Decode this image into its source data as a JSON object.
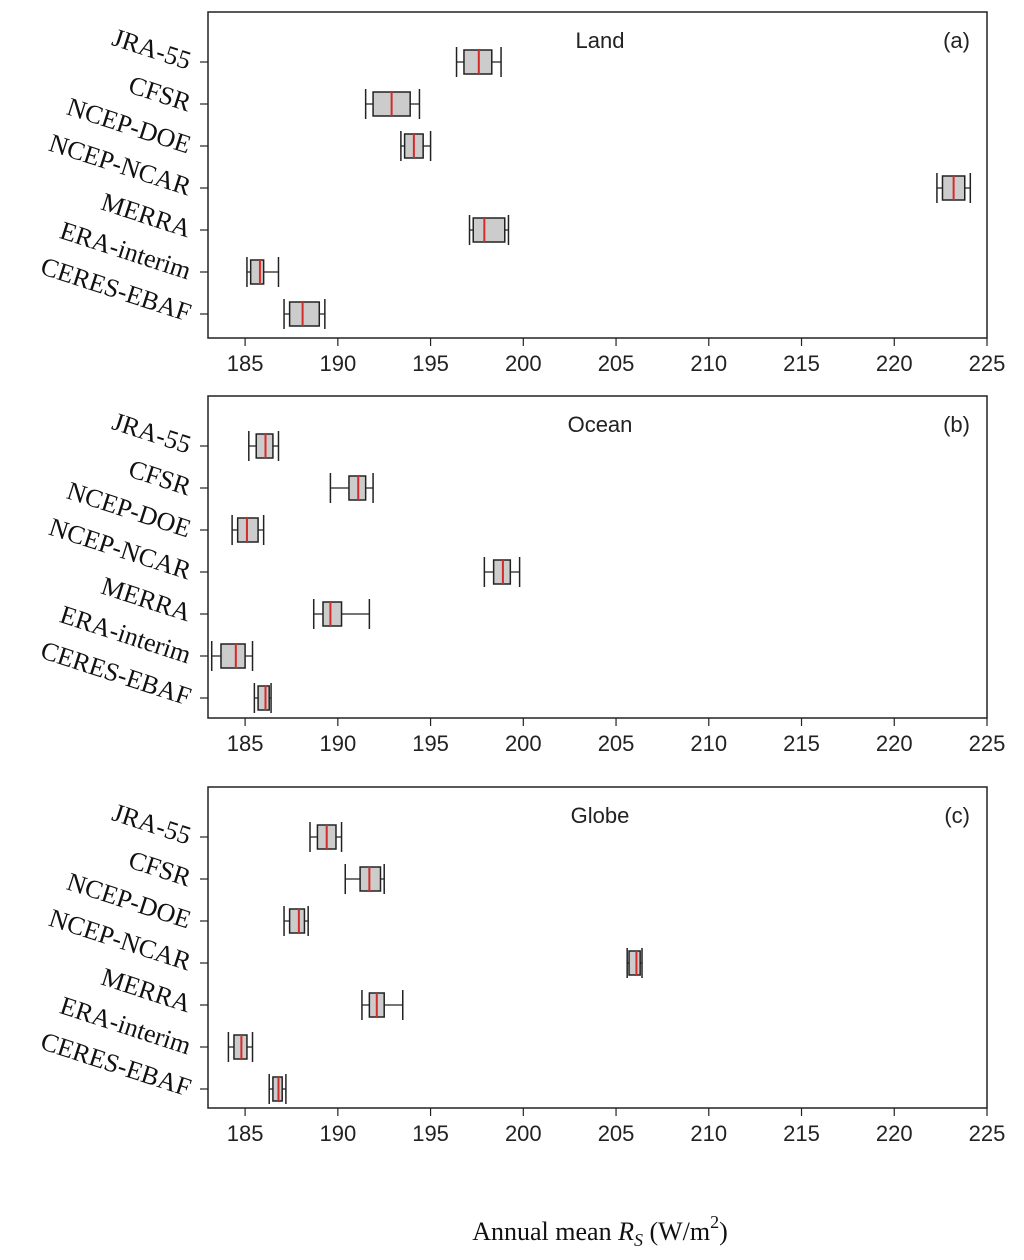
{
  "chart_data": [
    {
      "type": "box",
      "title": "Land",
      "panel_label": "(a)",
      "orientation": "horizontal",
      "categories": [
        "JRA-55",
        "CFSR",
        "NCEP-DOE",
        "NCEP-NCAR",
        "MERRA",
        "ERA-interim",
        "CERES-EBAF"
      ],
      "boxes": [
        {
          "name": "JRA-55",
          "whisker_low": 196.4,
          "q1": 196.8,
          "median": 197.6,
          "q3": 198.3,
          "whisker_high": 198.8
        },
        {
          "name": "CFSR",
          "whisker_low": 191.5,
          "q1": 191.9,
          "median": 192.9,
          "q3": 193.9,
          "whisker_high": 194.4
        },
        {
          "name": "NCEP-DOE",
          "whisker_low": 193.4,
          "q1": 193.6,
          "median": 194.1,
          "q3": 194.6,
          "whisker_high": 195.0
        },
        {
          "name": "NCEP-NCAR",
          "whisker_low": 222.3,
          "q1": 222.6,
          "median": 223.2,
          "q3": 223.8,
          "whisker_high": 224.1
        },
        {
          "name": "MERRA",
          "whisker_low": 197.1,
          "q1": 197.3,
          "median": 197.9,
          "q3": 199.0,
          "whisker_high": 199.2
        },
        {
          "name": "ERA-interim",
          "whisker_low": 185.1,
          "q1": 185.3,
          "median": 185.8,
          "q3": 186.0,
          "whisker_high": 186.8
        },
        {
          "name": "CERES-EBAF",
          "whisker_low": 187.1,
          "q1": 187.4,
          "median": 188.1,
          "q3": 189.0,
          "whisker_high": 189.3
        }
      ],
      "xlim": [
        183,
        225
      ],
      "xticks": [
        185,
        190,
        195,
        200,
        205,
        210,
        215,
        220,
        225
      ]
    },
    {
      "type": "box",
      "title": "Ocean",
      "panel_label": "(b)",
      "orientation": "horizontal",
      "categories": [
        "JRA-55",
        "CFSR",
        "NCEP-DOE",
        "NCEP-NCAR",
        "MERRA",
        "ERA-interim",
        "CERES-EBAF"
      ],
      "boxes": [
        {
          "name": "JRA-55",
          "whisker_low": 185.2,
          "q1": 185.6,
          "median": 186.1,
          "q3": 186.5,
          "whisker_high": 186.8
        },
        {
          "name": "CFSR",
          "whisker_low": 189.6,
          "q1": 190.6,
          "median": 191.1,
          "q3": 191.5,
          "whisker_high": 191.9
        },
        {
          "name": "NCEP-DOE",
          "whisker_low": 184.3,
          "q1": 184.6,
          "median": 185.1,
          "q3": 185.7,
          "whisker_high": 186.0
        },
        {
          "name": "NCEP-NCAR",
          "whisker_low": 197.9,
          "q1": 198.4,
          "median": 198.9,
          "q3": 199.3,
          "whisker_high": 199.8
        },
        {
          "name": "MERRA",
          "whisker_low": 188.7,
          "q1": 189.2,
          "median": 189.6,
          "q3": 190.2,
          "whisker_high": 191.7
        },
        {
          "name": "ERA-interim",
          "whisker_low": 183.2,
          "q1": 183.7,
          "median": 184.5,
          "q3": 185.0,
          "whisker_high": 185.4
        },
        {
          "name": "CERES-EBAF",
          "whisker_low": 185.5,
          "q1": 185.7,
          "median": 186.1,
          "q3": 186.3,
          "whisker_high": 186.4
        }
      ],
      "xlim": [
        183,
        225
      ],
      "xticks": [
        185,
        190,
        195,
        200,
        205,
        210,
        215,
        220,
        225
      ]
    },
    {
      "type": "box",
      "title": "Globe",
      "panel_label": "(c)",
      "orientation": "horizontal",
      "categories": [
        "JRA-55",
        "CFSR",
        "NCEP-DOE",
        "NCEP-NCAR",
        "MERRA",
        "ERA-interim",
        "CERES-EBAF"
      ],
      "boxes": [
        {
          "name": "JRA-55",
          "whisker_low": 188.5,
          "q1": 188.9,
          "median": 189.4,
          "q3": 189.9,
          "whisker_high": 190.2
        },
        {
          "name": "CFSR",
          "whisker_low": 190.4,
          "q1": 191.2,
          "median": 191.7,
          "q3": 192.3,
          "whisker_high": 192.5
        },
        {
          "name": "NCEP-DOE",
          "whisker_low": 187.1,
          "q1": 187.4,
          "median": 187.9,
          "q3": 188.2,
          "whisker_high": 188.4
        },
        {
          "name": "NCEP-NCAR",
          "whisker_low": 205.6,
          "q1": 205.7,
          "median": 206.1,
          "q3": 206.3,
          "whisker_high": 206.4
        },
        {
          "name": "MERRA",
          "whisker_low": 191.3,
          "q1": 191.7,
          "median": 192.1,
          "q3": 192.5,
          "whisker_high": 193.5
        },
        {
          "name": "ERA-interim",
          "whisker_low": 184.1,
          "q1": 184.4,
          "median": 184.8,
          "q3": 185.1,
          "whisker_high": 185.4
        },
        {
          "name": "CERES-EBAF",
          "whisker_low": 186.3,
          "q1": 186.5,
          "median": 186.8,
          "q3": 187.0,
          "whisker_high": 187.2
        }
      ],
      "xlim": [
        183,
        225
      ],
      "xticks": [
        185,
        190,
        195,
        200,
        205,
        210,
        215,
        220,
        225
      ]
    }
  ],
  "xlabel": {
    "prefix": "Annual mean ",
    "symbol": "R",
    "subscript": "S",
    "unit_open": " (W/m",
    "unit_sup": "2",
    "unit_close": ")"
  },
  "colors": {
    "box_fill": "#cccccc",
    "box_stroke": "#222222",
    "median": "#d62a2a",
    "frame": "#222222"
  }
}
